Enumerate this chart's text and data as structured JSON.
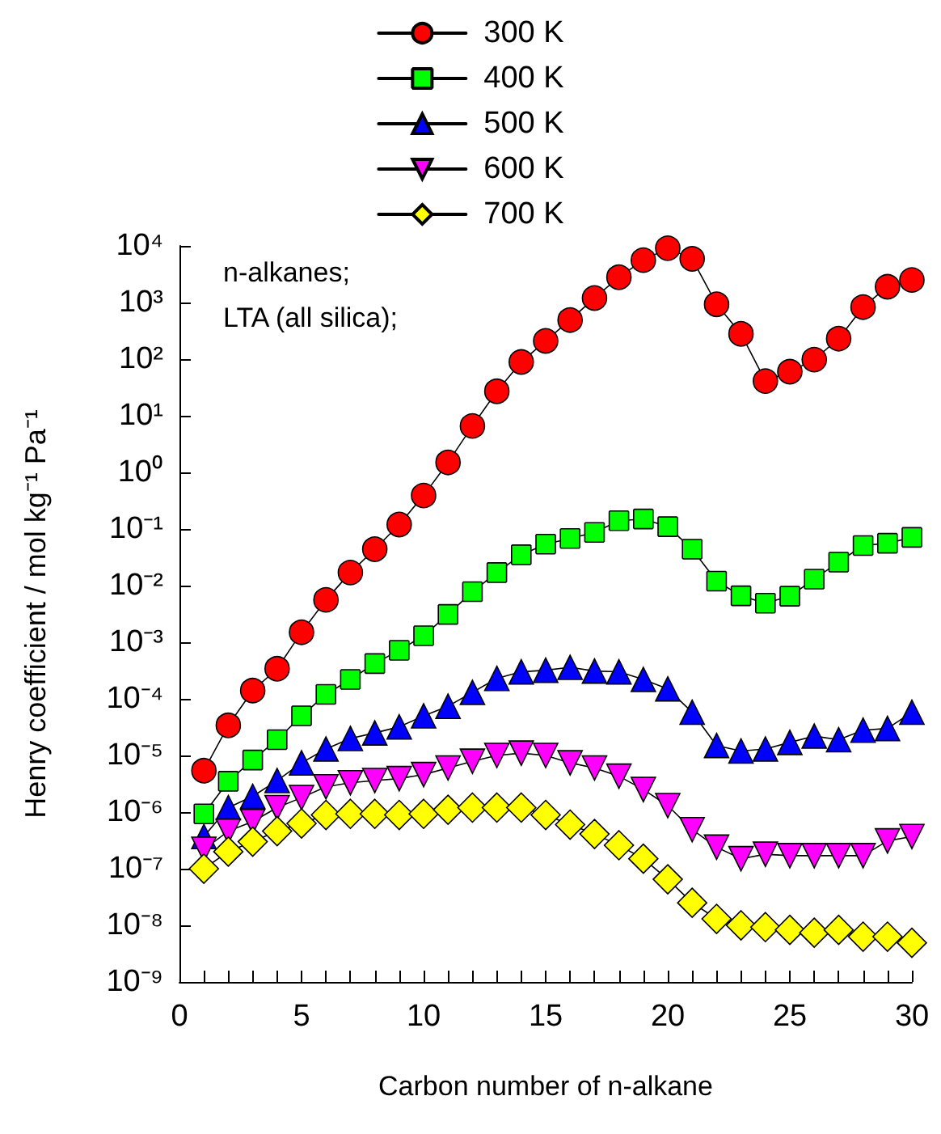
{
  "chart_data": {
    "type": "line",
    "xlabel": "Carbon number of n-alkane",
    "ylabel": "Henry coefficient / mol kg⁻¹ Pa⁻¹",
    "annotations": [
      "n-alkanes;",
      "LTA (all silica);"
    ],
    "x": [
      1,
      2,
      3,
      4,
      5,
      6,
      7,
      8,
      9,
      10,
      11,
      12,
      13,
      14,
      15,
      16,
      17,
      18,
      19,
      20,
      21,
      22,
      23,
      24,
      25,
      26,
      27,
      28,
      29,
      30
    ],
    "series": [
      {
        "name": "300 K",
        "color": "#ff0000",
        "marker": "circle",
        "values": [
          5.4e-06,
          3.4e-05,
          0.00014,
          0.00034,
          0.0015,
          0.0056,
          0.017,
          0.044,
          0.12,
          0.39,
          1.5,
          6.6,
          27,
          89,
          210,
          490,
          1200,
          2800,
          5600,
          9100,
          5900,
          930,
          280,
          41,
          60,
          98,
          230,
          830,
          1900,
          2500
        ]
      },
      {
        "name": "400 K",
        "color": "#00ff00",
        "marker": "square",
        "values": [
          9.3e-07,
          3.5e-06,
          8.3e-06,
          1.9e-05,
          5e-05,
          0.00012,
          0.00022,
          0.00042,
          0.00072,
          0.0013,
          0.0031,
          0.0078,
          0.017,
          0.035,
          0.054,
          0.068,
          0.087,
          0.14,
          0.15,
          0.11,
          0.044,
          0.012,
          0.0066,
          0.0049,
          0.0065,
          0.013,
          0.026,
          0.051,
          0.056,
          0.071
        ]
      },
      {
        "name": "500 K",
        "color": "#0000ff",
        "marker": "triangle",
        "values": [
          3.7e-07,
          1.2e-06,
          1.9e-06,
          3.6e-06,
          7.4e-06,
          1.3e-05,
          2e-05,
          2.5e-05,
          3.2e-05,
          5e-05,
          7.4e-05,
          0.00013,
          0.00023,
          0.0003,
          0.00032,
          0.00036,
          0.00031,
          0.0003,
          0.00022,
          0.00015,
          5.8e-05,
          1.5e-05,
          1.2e-05,
          1.3e-05,
          1.7e-05,
          2.2e-05,
          1.9e-05,
          2.8e-05,
          3e-05,
          5.8e-05
        ]
      },
      {
        "name": "600 K",
        "color": "#ff00ff",
        "marker": "triangle-down",
        "values": [
          2.2e-07,
          4.6e-07,
          6.8e-07,
          1.2e-06,
          1.8e-06,
          2.8e-06,
          3.3e-06,
          3.6e-06,
          3.9e-06,
          4.6e-06,
          6e-06,
          7.9e-06,
          1e-05,
          1.1e-05,
          1e-05,
          7.4e-06,
          6e-06,
          4.3e-06,
          2.5e-06,
          1.3e-06,
          4.9e-07,
          2.4e-07,
          1.5e-07,
          1.8e-07,
          1.7e-07,
          1.7e-07,
          1.7e-07,
          1.7e-07,
          3.1e-07,
          3.7e-07
        ]
      },
      {
        "name": "700 K",
        "color": "#ffff00",
        "marker": "diamond",
        "values": [
          1e-07,
          2e-07,
          3e-07,
          4.6e-07,
          6.3e-07,
          8.9e-07,
          9.3e-07,
          9.3e-07,
          8.9e-07,
          9.3e-07,
          1.1e-06,
          1.2e-06,
          1.2e-06,
          1.2e-06,
          8.9e-07,
          6e-07,
          4.1e-07,
          2.6e-07,
          1.5e-07,
          6.5e-08,
          2.5e-08,
          1.3e-08,
          1e-08,
          9.3e-09,
          8.3e-09,
          7.4e-09,
          8.3e-09,
          6.3e-09,
          6.3e-09,
          4.9e-09
        ]
      }
    ],
    "xlim": [
      0,
      30
    ],
    "xticks": [
      0,
      {
        "value": 1,
        "label": null
      },
      {
        "value": 2,
        "label": null
      },
      {
        "value": 3,
        "label": null
      },
      {
        "value": 4,
        "label": null
      },
      5,
      {
        "value": 6,
        "label": null
      },
      {
        "value": 7,
        "label": null
      },
      {
        "value": 8,
        "label": null
      },
      {
        "value": 9,
        "label": null
      },
      10,
      {
        "value": 11,
        "label": null
      },
      {
        "value": 12,
        "label": null
      },
      {
        "value": 13,
        "label": null
      },
      {
        "value": 14,
        "label": null
      },
      15,
      {
        "value": 16,
        "label": null
      },
      {
        "value": 17,
        "label": null
      },
      {
        "value": 18,
        "label": null
      },
      {
        "value": 19,
        "label": null
      },
      20,
      {
        "value": 21,
        "label": null
      },
      {
        "value": 22,
        "label": null
      },
      {
        "value": 23,
        "label": null
      },
      {
        "value": 24,
        "label": null
      },
      25,
      {
        "value": 26,
        "label": null
      },
      {
        "value": 27,
        "label": null
      },
      {
        "value": 28,
        "label": null
      },
      {
        "value": 29,
        "label": null
      },
      30
    ],
    "ylim": [
      1e-09,
      10000.0
    ],
    "yticks": [
      {
        "value": 1e-09,
        "label": "10⁻⁹"
      },
      {
        "value": 1e-08,
        "label": "10⁻⁸"
      },
      {
        "value": 1e-07,
        "label": "10⁻⁷"
      },
      {
        "value": 1e-06,
        "label": "10⁻⁶"
      },
      {
        "value": 1e-05,
        "label": "10⁻⁵"
      },
      {
        "value": 0.0001,
        "label": "10⁻⁴"
      },
      {
        "value": 0.001,
        "label": "10⁻³"
      },
      {
        "value": 0.01,
        "label": "10⁻²"
      },
      {
        "value": 0.1,
        "label": "10⁻¹"
      },
      {
        "value": 1,
        "label": "10⁰"
      },
      {
        "value": 10,
        "label": "10¹"
      },
      {
        "value": 100,
        "label": "10²"
      },
      {
        "value": 1000,
        "label": "10³"
      },
      {
        "value": 10000,
        "label": "10⁴"
      }
    ],
    "log": "y",
    "grid": false,
    "legend": "top",
    "line_style": "solid"
  }
}
